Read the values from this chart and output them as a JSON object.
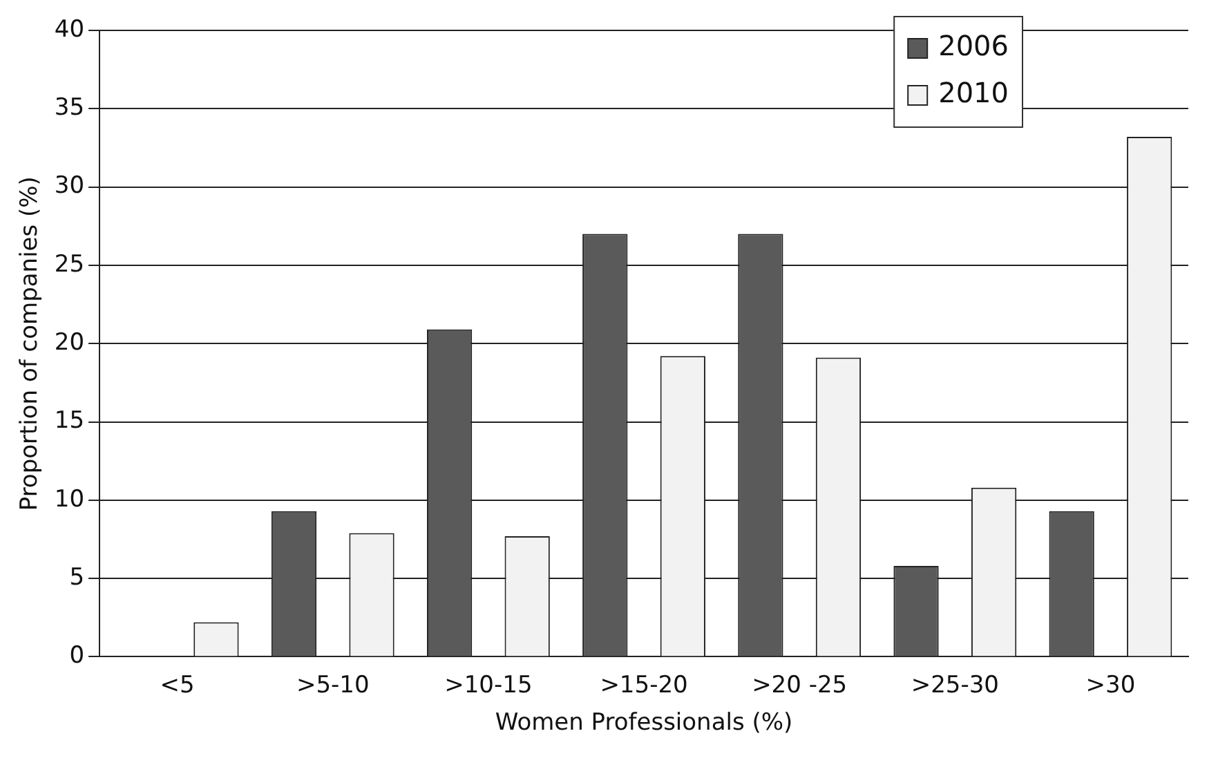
{
  "chart_data": {
    "type": "bar",
    "xlabel": "Women Professionals (%)",
    "ylabel": "Proportion of companies (%)",
    "categories": [
      "<5",
      ">5-10",
      ">10-15",
      ">15-20",
      ">20 -25",
      ">25-30",
      ">30"
    ],
    "series": [
      {
        "name": "2006",
        "color": "#5a5a5a",
        "values": [
          0,
          9.3,
          20.9,
          27.0,
          27.0,
          5.8,
          9.3
        ]
      },
      {
        "name": "2010",
        "color": "#f2f2f2",
        "values": [
          2.2,
          7.9,
          7.7,
          19.2,
          19.1,
          10.8,
          33.2
        ]
      }
    ],
    "ylim": [
      0,
      40
    ],
    "yticks": [
      0,
      5,
      10,
      15,
      20,
      25,
      30,
      35,
      40
    ],
    "grid": "y",
    "legend": "top right"
  }
}
